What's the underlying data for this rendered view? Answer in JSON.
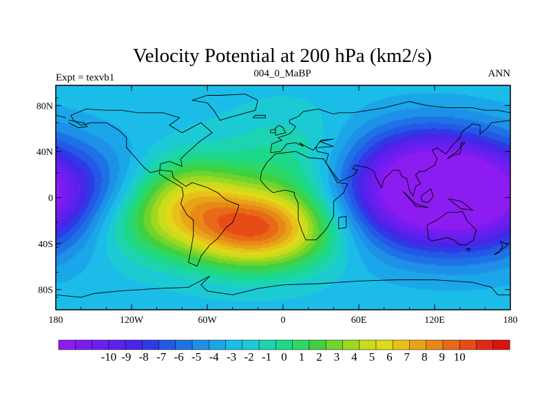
{
  "chart_data": {
    "type": "heatmap",
    "title": "Velocity Potential at 200 hPa (km2/s)",
    "left_label": "Expt = texvb1",
    "center_label": "004_0_MaBP",
    "right_label": "ANN",
    "x_ticks": [
      "180",
      "120W",
      "60W",
      "0",
      "60E",
      "120E",
      "180"
    ],
    "x_range": [
      -180,
      180
    ],
    "y_ticks": [
      "80N",
      "40N",
      "0",
      "40S",
      "80S"
    ],
    "y_range": [
      -90,
      90
    ],
    "colorbar_labels": [
      "-10",
      "-9",
      "-8",
      "-7",
      "-6",
      "-5",
      "-4",
      "-3",
      "-2",
      "-1",
      "0",
      "1",
      "2",
      "3",
      "4",
      "5",
      "6",
      "7",
      "8",
      "9",
      "10"
    ],
    "colorbar_colors": [
      "#8c1cf0",
      "#7a1cf0",
      "#6a1ef0",
      "#5a22ec",
      "#4826e8",
      "#2e3ae6",
      "#2458e6",
      "#1e72e6",
      "#1e90e8",
      "#1aa6e8",
      "#1cbce8",
      "#1ccad4",
      "#1cd4b0",
      "#1ed88a",
      "#2ed868",
      "#40d040",
      "#70d42e",
      "#9ed822",
      "#c8dc1c",
      "#e0d81a",
      "#e8c01a",
      "#e8a418",
      "#e88818",
      "#e86a18",
      "#e84c16",
      "#e02a14",
      "#d81410"
    ],
    "field_min": -10,
    "field_max": 10,
    "field_centers": [
      {
        "lon": -20,
        "lat": -25,
        "amp": 10.5,
        "slon": 42,
        "slat": 22
      },
      {
        "lon": -75,
        "lat": 5,
        "amp": 4.5,
        "slon": 30,
        "slat": 22
      },
      {
        "lon": -110,
        "lat": -20,
        "amp": 3.5,
        "slon": 40,
        "slat": 22
      },
      {
        "lon": 5,
        "lat": 25,
        "amp": 2.5,
        "slon": 35,
        "slat": 28
      },
      {
        "lon": 135,
        "lat": 0,
        "amp": -11,
        "slon": 60,
        "slat": 30
      },
      {
        "lon": 110,
        "lat": 30,
        "amp": -3,
        "slon": 40,
        "slat": 25
      }
    ],
    "field_base": -2.3,
    "coastlines": [
      [
        [
          -168,
          66
        ],
        [
          -156,
          71
        ],
        [
          -140,
          70
        ],
        [
          -128,
          70
        ],
        [
          -115,
          68
        ],
        [
          -95,
          68
        ],
        [
          -82,
          64
        ],
        [
          -90,
          58
        ],
        [
          -80,
          52
        ],
        [
          -65,
          60
        ],
        [
          -56,
          52
        ],
        [
          -66,
          45
        ],
        [
          -76,
          36
        ],
        [
          -81,
          31
        ],
        [
          -80,
          25
        ],
        [
          -90,
          29
        ],
        [
          -97,
          27
        ],
        [
          -98,
          19
        ],
        [
          -92,
          15
        ],
        [
          -85,
          11
        ],
        [
          -80,
          8
        ],
        [
          -79,
          2
        ],
        [
          -81,
          -5
        ],
        [
          -76,
          -14
        ],
        [
          -71,
          -18
        ],
        [
          -71,
          -30
        ],
        [
          -73,
          -42
        ],
        [
          -75,
          -52
        ],
        [
          -68,
          -55
        ],
        [
          -65,
          -47
        ],
        [
          -58,
          -38
        ],
        [
          -52,
          -33
        ],
        [
          -45,
          -24
        ],
        [
          -40,
          -20
        ],
        [
          -36,
          -10
        ],
        [
          -35,
          -6
        ],
        [
          -45,
          -2
        ],
        [
          -52,
          4
        ],
        [
          -60,
          8
        ],
        [
          -72,
          12
        ],
        [
          -77,
          9
        ],
        [
          -87,
          16
        ],
        [
          -88,
          21
        ],
        [
          -97,
          22
        ],
        [
          -105,
          20
        ],
        [
          -110,
          24
        ],
        [
          -117,
          32
        ],
        [
          -124,
          40
        ],
        [
          -124,
          48
        ],
        [
          -130,
          54
        ],
        [
          -140,
          60
        ],
        [
          -152,
          60
        ],
        [
          -160,
          58
        ],
        [
          -166,
          62
        ],
        [
          -168,
          66
        ]
      ],
      [
        [
          -170,
          62
        ],
        [
          -158,
          60
        ],
        [
          -155,
          57
        ],
        [
          -162,
          56
        ],
        [
          -170,
          60
        ]
      ],
      [
        [
          -50,
          82
        ],
        [
          -30,
          83
        ],
        [
          -20,
          78
        ],
        [
          -22,
          70
        ],
        [
          -40,
          65
        ],
        [
          -50,
          62
        ],
        [
          -55,
          70
        ],
        [
          -60,
          76
        ],
        [
          -72,
          78
        ],
        [
          -60,
          82
        ],
        [
          -50,
          82
        ]
      ],
      [
        [
          -18,
          14
        ],
        [
          -17,
          21
        ],
        [
          -13,
          28
        ],
        [
          -6,
          35
        ],
        [
          10,
          37
        ],
        [
          20,
          32
        ],
        [
          32,
          31
        ],
        [
          34,
          28
        ],
        [
          43,
          12
        ],
        [
          51,
          11
        ],
        [
          48,
          4
        ],
        [
          40,
          -3
        ],
        [
          40,
          -15
        ],
        [
          35,
          -24
        ],
        [
          32,
          -28
        ],
        [
          26,
          -34
        ],
        [
          18,
          -34
        ],
        [
          15,
          -27
        ],
        [
          12,
          -18
        ],
        [
          12,
          -5
        ],
        [
          9,
          2
        ],
        [
          9,
          4
        ],
        [
          2,
          6
        ],
        [
          -8,
          4
        ],
        [
          -13,
          8
        ],
        [
          -18,
          14
        ]
      ],
      [
        [
          44,
          -16
        ],
        [
          50,
          -15
        ],
        [
          50,
          -24
        ],
        [
          44,
          -25
        ],
        [
          44,
          -16
        ]
      ],
      [
        [
          -10,
          36
        ],
        [
          -9,
          43
        ],
        [
          -1,
          46
        ],
        [
          -4,
          48
        ],
        [
          5,
          51
        ],
        [
          8,
          54
        ],
        [
          10,
          57
        ],
        [
          5,
          60
        ],
        [
          5,
          62
        ],
        [
          12,
          65
        ],
        [
          16,
          69
        ],
        [
          28,
          71
        ],
        [
          40,
          67
        ],
        [
          44,
          68
        ],
        [
          55,
          68
        ],
        [
          68,
          70
        ],
        [
          80,
          72
        ],
        [
          100,
          77
        ],
        [
          113,
          74
        ],
        [
          130,
          72
        ],
        [
          150,
          72
        ],
        [
          160,
          70
        ],
        [
          170,
          70
        ],
        [
          180,
          68
        ]
      ],
      [
        [
          -180,
          66
        ],
        [
          -172,
          64
        ]
      ],
      [
        [
          180,
          62
        ],
        [
          165,
          60
        ],
        [
          162,
          56
        ],
        [
          156,
          51
        ],
        [
          156,
          58
        ],
        [
          150,
          59
        ],
        [
          142,
          53
        ],
        [
          140,
          48
        ],
        [
          135,
          43
        ],
        [
          129,
          35
        ],
        [
          126,
          37
        ],
        [
          122,
          40
        ],
        [
          118,
          38
        ],
        [
          122,
          31
        ],
        [
          120,
          26
        ],
        [
          112,
          21
        ],
        [
          108,
          21
        ],
        [
          105,
          18
        ],
        [
          109,
          11
        ],
        [
          105,
          9
        ],
        [
          103,
          1
        ],
        [
          100,
          6
        ],
        [
          98,
          15
        ],
        [
          94,
          17
        ],
        [
          92,
          22
        ],
        [
          87,
          22
        ],
        [
          80,
          15
        ],
        [
          78,
          8
        ],
        [
          74,
          15
        ],
        [
          72,
          21
        ],
        [
          67,
          24
        ],
        [
          57,
          26
        ],
        [
          55,
          23
        ],
        [
          59,
          22
        ],
        [
          56,
          18
        ],
        [
          45,
          13
        ],
        [
          43,
          15
        ],
        [
          38,
          22
        ],
        [
          34,
          28
        ],
        [
          36,
          35
        ],
        [
          27,
          37
        ],
        [
          26,
          40
        ],
        [
          40,
          41
        ],
        [
          29,
          45
        ],
        [
          40,
          47
        ],
        [
          30,
          46
        ],
        [
          24,
          38
        ],
        [
          20,
          40
        ],
        [
          13,
          44
        ],
        [
          16,
          41
        ],
        [
          10,
          44
        ],
        [
          3,
          43
        ],
        [
          -2,
          37
        ],
        [
          -10,
          36
        ]
      ],
      [
        [
          -6,
          50
        ],
        [
          2,
          52
        ],
        [
          0,
          56
        ],
        [
          -3,
          58
        ],
        [
          -6,
          56
        ],
        [
          -6,
          50
        ]
      ],
      [
        [
          -10,
          52
        ],
        [
          -6,
          52
        ],
        [
          -6,
          55
        ],
        [
          -10,
          54
        ],
        [
          -10,
          52
        ]
      ],
      [
        [
          -24,
          64
        ],
        [
          -14,
          64
        ],
        [
          -14,
          66
        ],
        [
          -22,
          66
        ],
        [
          -24,
          64
        ]
      ],
      [
        [
          130,
          31
        ],
        [
          135,
          34
        ],
        [
          140,
          35
        ],
        [
          141,
          39
        ],
        [
          141,
          44
        ],
        [
          144,
          44
        ],
        [
          140,
          40
        ],
        [
          137,
          36
        ],
        [
          132,
          33
        ],
        [
          130,
          31
        ]
      ],
      [
        [
          95,
          5
        ],
        [
          105,
          -5
        ],
        [
          115,
          -8
        ],
        [
          105,
          -7
        ],
        [
          95,
          5
        ]
      ],
      [
        [
          109,
          1
        ],
        [
          117,
          7
        ],
        [
          119,
          1
        ],
        [
          115,
          -4
        ],
        [
          110,
          -3
        ],
        [
          109,
          1
        ]
      ],
      [
        [
          131,
          -1
        ],
        [
          141,
          -3
        ],
        [
          150,
          -10
        ],
        [
          141,
          -9
        ],
        [
          131,
          -1
        ]
      ],
      [
        [
          114,
          -22
        ],
        [
          122,
          -18
        ],
        [
          130,
          -12
        ],
        [
          137,
          -12
        ],
        [
          142,
          -11
        ],
        [
          146,
          -19
        ],
        [
          153,
          -26
        ],
        [
          151,
          -34
        ],
        [
          145,
          -38
        ],
        [
          140,
          -38
        ],
        [
          135,
          -34
        ],
        [
          130,
          -32
        ],
        [
          118,
          -35
        ],
        [
          115,
          -33
        ],
        [
          114,
          -22
        ]
      ],
      [
        [
          145,
          -41
        ],
        [
          148,
          -41
        ],
        [
          147,
          -43
        ],
        [
          145,
          -41
        ]
      ],
      [
        [
          172,
          -35
        ],
        [
          178,
          -38
        ],
        [
          174,
          -41
        ],
        [
          167,
          -46
        ],
        [
          171,
          -44
        ],
        [
          174,
          -39
        ],
        [
          172,
          -35
        ]
      ],
      [
        [
          -180,
          -78
        ],
        [
          -160,
          -80
        ],
        [
          -150,
          -77
        ],
        [
          -130,
          -75
        ],
        [
          -100,
          -73
        ],
        [
          -75,
          -72
        ],
        [
          -60,
          -64
        ],
        [
          -58,
          -63
        ],
        [
          -65,
          -70
        ],
        [
          -60,
          -75
        ],
        [
          -40,
          -78
        ],
        [
          -20,
          -73
        ],
        [
          0,
          -70
        ],
        [
          30,
          -69
        ],
        [
          60,
          -67
        ],
        [
          90,
          -66
        ],
        [
          120,
          -66
        ],
        [
          150,
          -68
        ],
        [
          165,
          -72
        ],
        [
          170,
          -78
        ],
        [
          180,
          -78
        ]
      ]
    ]
  }
}
